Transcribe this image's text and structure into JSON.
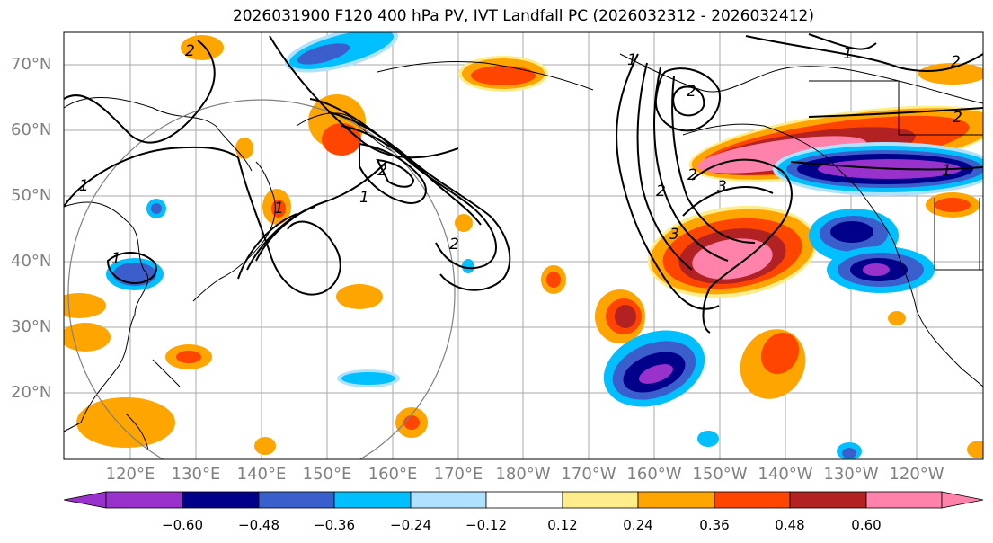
{
  "title": "2026031900 F120 400 hPa PV, IVT Landfall PC (2026032312 - 2026032412)",
  "map": {
    "lat_labels": [
      "70°N",
      "60°N",
      "50°N",
      "40°N",
      "30°N",
      "20°N"
    ],
    "lon_labels": [
      "120°E",
      "130°E",
      "140°E",
      "150°E",
      "160°E",
      "170°E",
      "180°W",
      "170°W",
      "160°W",
      "150°W",
      "140°W",
      "130°W",
      "120°W"
    ],
    "contour_labels": [
      "1",
      "1",
      "2",
      "2",
      "2",
      "3",
      "3",
      "1",
      "2",
      "1",
      "2",
      "1",
      "2",
      "2",
      "1",
      "2",
      "1"
    ],
    "colors": {
      "neg_060": "#9932CC",
      "neg_048": "#00008B",
      "neg_036": "#3A5FCD",
      "neg_024": "#00BFFF",
      "neg_012": "#B0E2FF",
      "neutral": "#FFFFFF",
      "pos_012": "#FFEC8B",
      "pos_024": "#FFA500",
      "pos_036": "#FF4500",
      "pos_048": "#B22222",
      "pos_060": "#FF82AB"
    }
  },
  "colorbar": {
    "ticks": [
      "−0.60",
      "−0.48",
      "−0.36",
      "−0.24",
      "−0.12",
      "0.12",
      "0.24",
      "0.36",
      "0.48",
      "0.60"
    ],
    "colors": [
      "#9932CC",
      "#00008B",
      "#3A5FCD",
      "#00BFFF",
      "#B0E2FF",
      "#FFFFFF",
      "#FFEC8B",
      "#FFA500",
      "#FF4500",
      "#B22222",
      "#FF82AB"
    ]
  }
}
